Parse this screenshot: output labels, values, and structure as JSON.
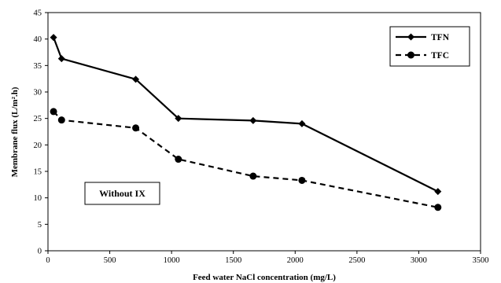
{
  "chart_data": {
    "type": "line",
    "xlabel": "Feed water NaCl concentration (mg/L)",
    "ylabel": "Membrane flux (L/m².h)",
    "xlim": [
      0,
      3500
    ],
    "ylim": [
      0,
      45
    ],
    "xticks": [
      0,
      500,
      1000,
      1500,
      2000,
      2500,
      3000,
      3500
    ],
    "yticks": [
      0,
      5,
      10,
      15,
      20,
      25,
      30,
      35,
      40,
      45
    ],
    "grid": false,
    "legend_position": "top-right",
    "annotation": "Without IX",
    "series": [
      {
        "name": "TFN",
        "marker": "diamond",
        "line_style": "solid",
        "color": "#000000",
        "points": [
          {
            "x": 45,
            "y": 40.3
          },
          {
            "x": 110,
            "y": 36.3
          },
          {
            "x": 710,
            "y": 32.4
          },
          {
            "x": 1055,
            "y": 25.0
          },
          {
            "x": 1660,
            "y": 24.6
          },
          {
            "x": 2055,
            "y": 24.0
          },
          {
            "x": 3155,
            "y": 11.2
          }
        ]
      },
      {
        "name": "TFC",
        "marker": "circle",
        "line_style": "dashed",
        "color": "#000000",
        "points": [
          {
            "x": 45,
            "y": 26.3
          },
          {
            "x": 110,
            "y": 24.7
          },
          {
            "x": 710,
            "y": 23.2
          },
          {
            "x": 1055,
            "y": 17.3
          },
          {
            "x": 1660,
            "y": 14.1
          },
          {
            "x": 2055,
            "y": 13.3
          },
          {
            "x": 3155,
            "y": 8.2
          }
        ]
      }
    ]
  }
}
